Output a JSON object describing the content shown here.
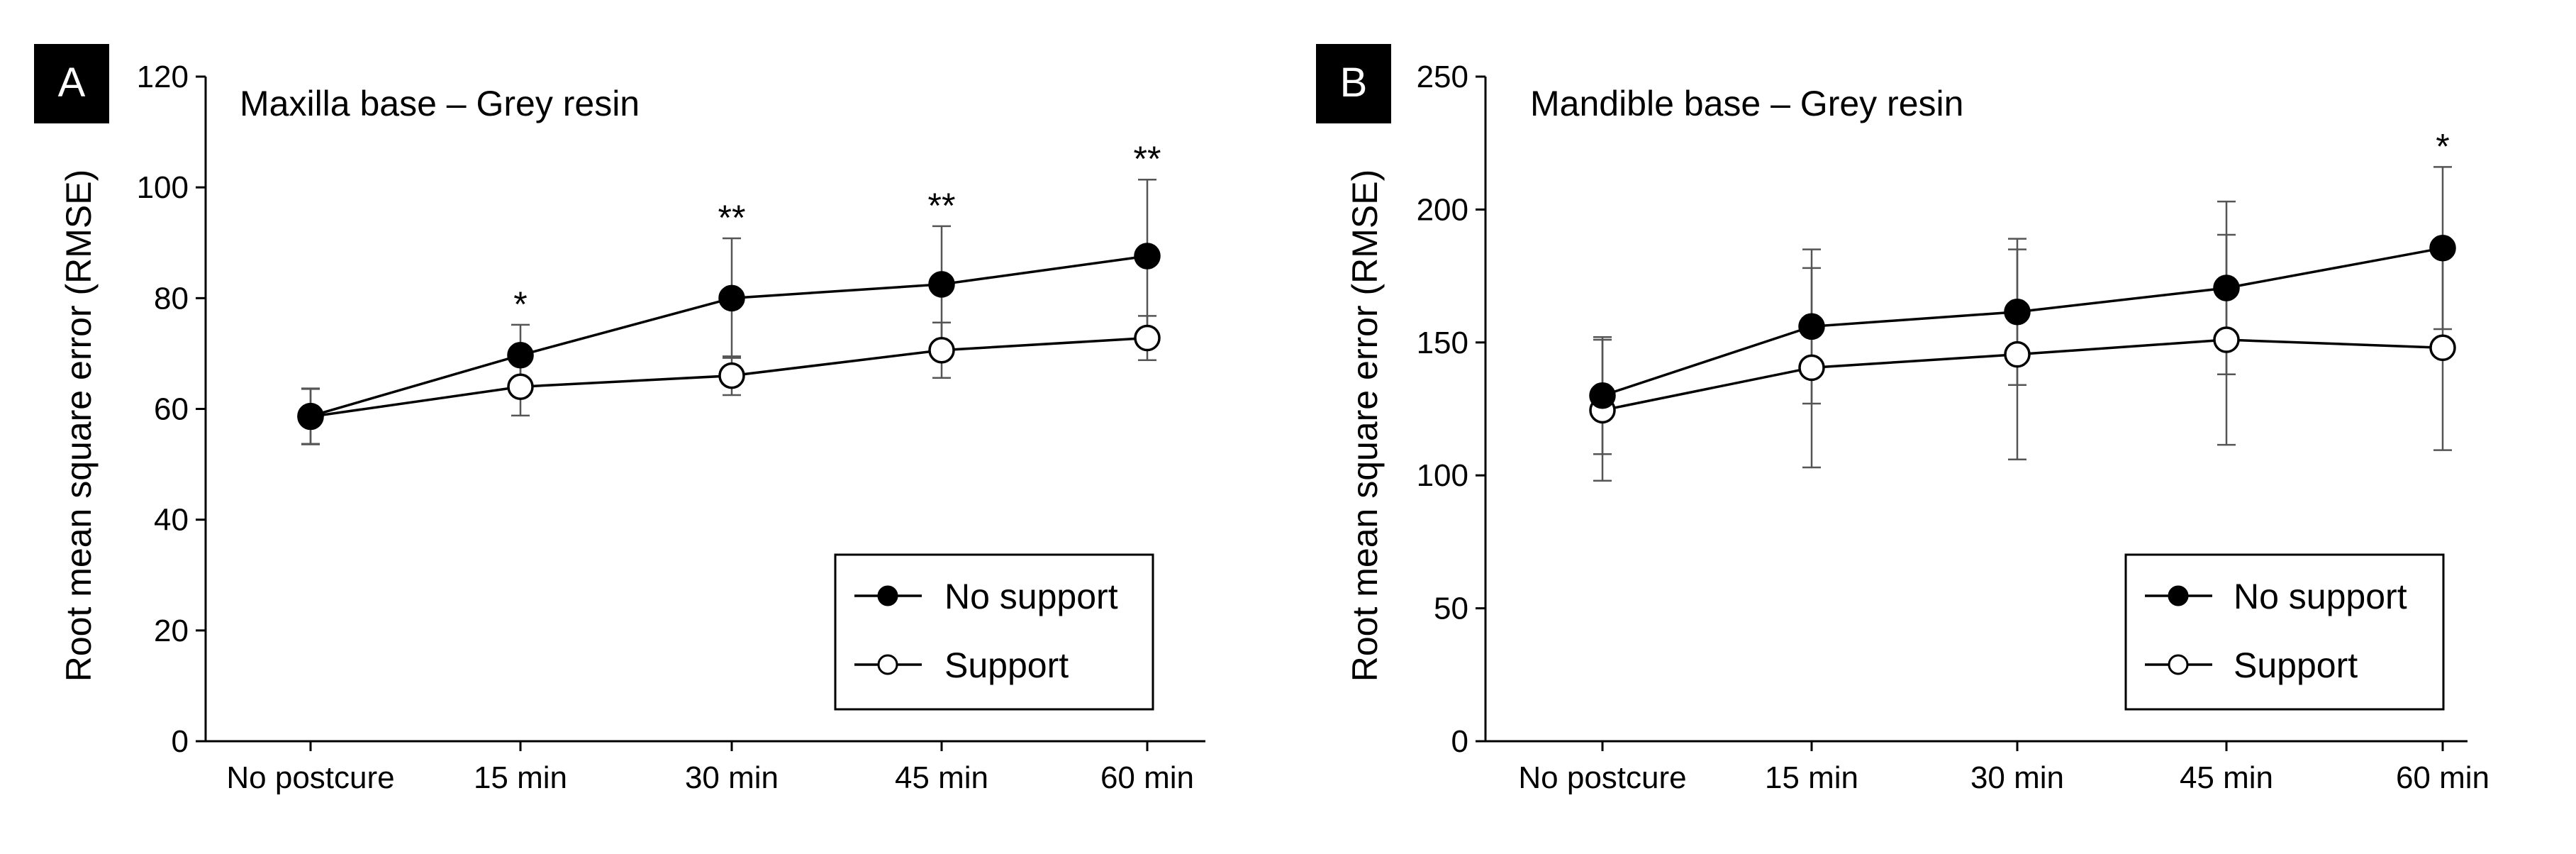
{
  "chart_data": [
    {
      "type": "line",
      "panel": "A",
      "title": "Maxilla base – Grey resin",
      "ylabel": "Root mean square error (RMSE)",
      "xlabel": "",
      "categories": [
        "No postcure",
        "15 min",
        "30 min",
        "45 min",
        "60 min"
      ],
      "ylim": [
        0,
        120
      ],
      "yticks": [
        0,
        20,
        40,
        60,
        80,
        100,
        120
      ],
      "series": [
        {
          "name": "No support",
          "marker": "filled",
          "values": [
            58.7,
            69.7,
            80.0,
            82.5,
            87.6
          ],
          "err": [
            5.0,
            5.5,
            10.8,
            10.5,
            13.8
          ]
        },
        {
          "name": "Support",
          "marker": "open",
          "values": [
            58.6,
            64.0,
            66.0,
            70.6,
            72.8
          ],
          "err": [
            5.0,
            5.2,
            3.5,
            5.0,
            4.0
          ]
        }
      ],
      "significance": [
        "",
        "*",
        "**",
        "**",
        "**"
      ],
      "legend_position": "bottom-right",
      "grid": false
    },
    {
      "type": "line",
      "panel": "B",
      "title": "Mandible base – Grey resin",
      "ylabel": "Root mean square error (RMSE)",
      "xlabel": "",
      "categories": [
        "No postcure",
        "15 min",
        "30 min",
        "45 min",
        "60 min"
      ],
      "ylim": [
        0,
        250
      ],
      "yticks": [
        0,
        50,
        100,
        150,
        200,
        250
      ],
      "series": [
        {
          "name": "No support",
          "marker": "filled",
          "values": [
            130,
            156,
            161.5,
            170.5,
            185.5
          ],
          "err": [
            22,
            29,
            27.5,
            32.5,
            30.5
          ]
        },
        {
          "name": "Support",
          "marker": "open",
          "values": [
            124.5,
            140.5,
            145.5,
            151,
            148
          ],
          "err": [
            26.5,
            37.5,
            39.5,
            39.5,
            38.5
          ]
        }
      ],
      "significance": [
        "",
        "",
        "",
        "",
        "*"
      ],
      "legend_position": "bottom-right",
      "grid": false
    }
  ]
}
